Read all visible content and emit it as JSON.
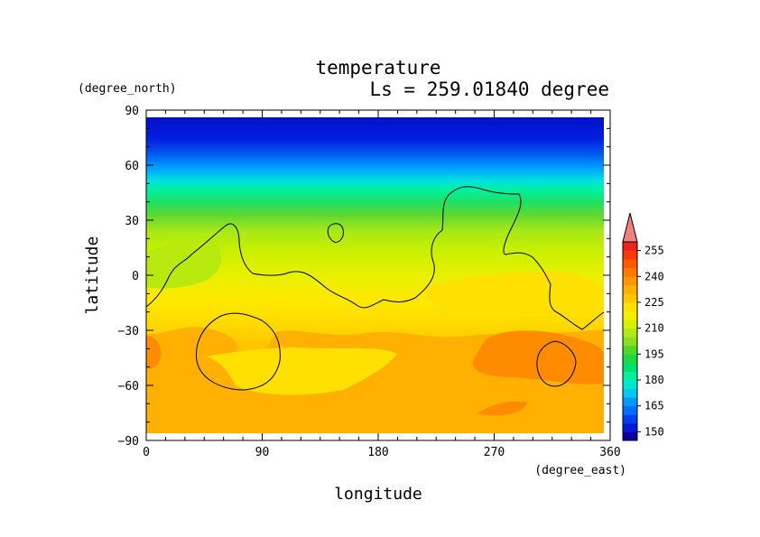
{
  "chart_data": {
    "type": "heatmap",
    "title": "temperature",
    "subtitle": "Ls = 259.01840 degree",
    "xlabel": "longitude",
    "ylabel": "latitude",
    "x_units": "(degree_east)",
    "y_units": "(degree_north)",
    "xlim": [
      0,
      360
    ],
    "ylim": [
      -90,
      90
    ],
    "x_ticks": [
      "0",
      "90",
      "180",
      "270",
      "360"
    ],
    "y_ticks": [
      "90",
      "60",
      "30",
      "0",
      "−30",
      "−60",
      "−90"
    ],
    "colorbar": {
      "labels": [
        "150",
        "165",
        "180",
        "195",
        "210",
        "225",
        "240",
        "255"
      ],
      "levels": [
        145,
        150,
        155,
        160,
        165,
        170,
        175,
        180,
        185,
        190,
        195,
        200,
        205,
        210,
        215,
        220,
        225,
        230,
        235,
        240,
        245,
        250,
        255,
        260
      ],
      "colors": [
        "#0a00a0",
        "#0018d8",
        "#0040f0",
        "#0070f8",
        "#0098ff",
        "#00c8f0",
        "#00e8d0",
        "#00f0a0",
        "#00e070",
        "#20d840",
        "#50d828",
        "#88e020",
        "#b0e818",
        "#d8f000",
        "#f0f000",
        "#ffe000",
        "#ffc800",
        "#ffb000",
        "#ff9600",
        "#ff7800",
        "#ff5a00",
        "#ff3a00",
        "#f02020"
      ],
      "extend_top_color": "#f08080"
    },
    "grid": false
  }
}
